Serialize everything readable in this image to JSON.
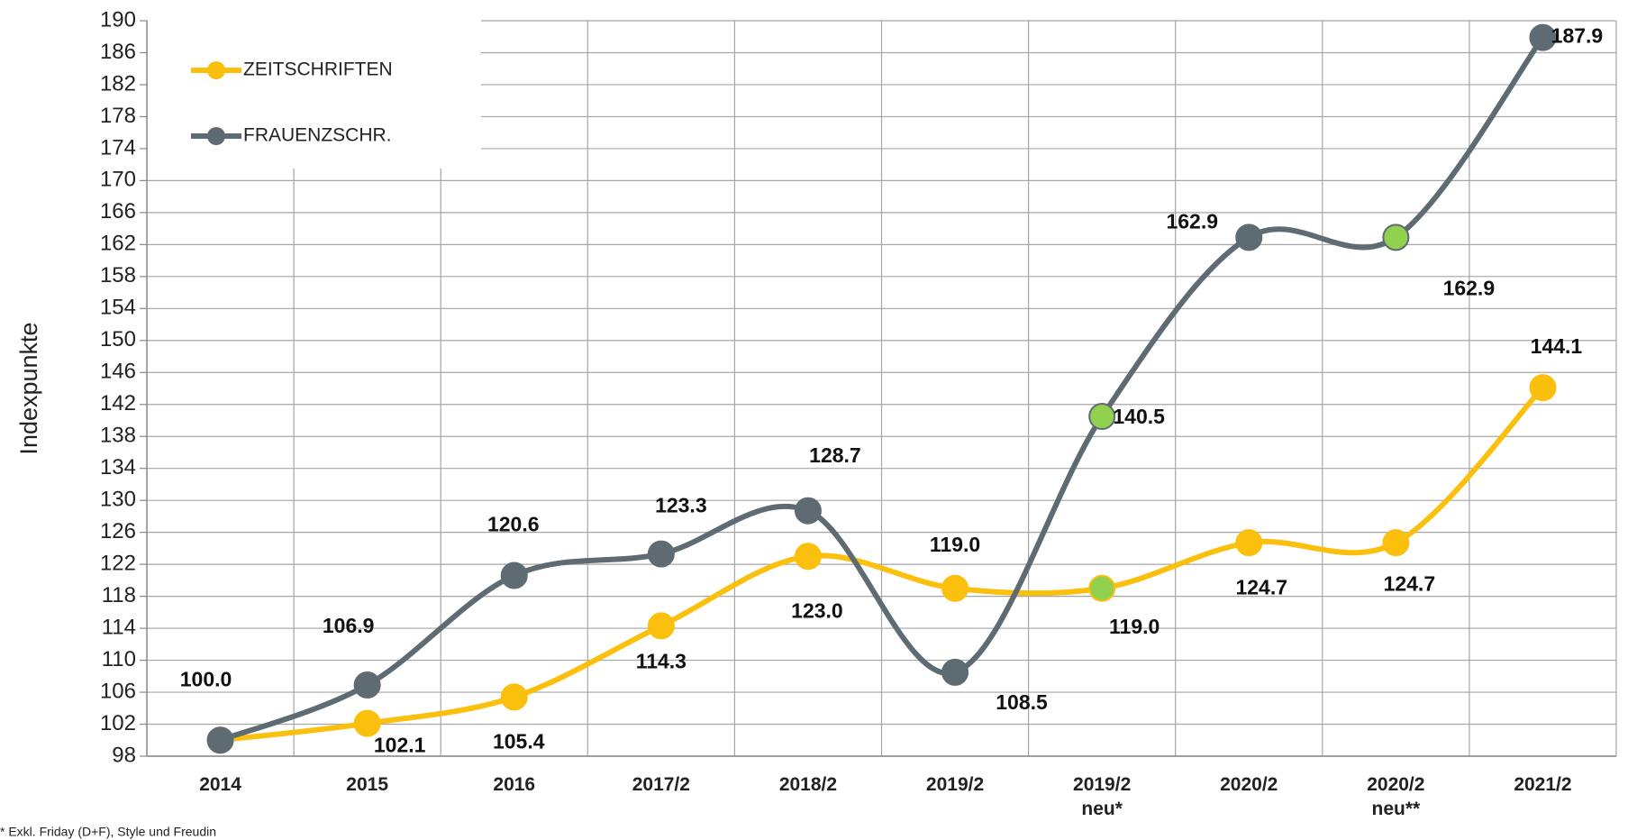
{
  "chart_data": {
    "type": "line",
    "smooth": true,
    "y_label": "Indexpunkte",
    "footnote": "* Exkl. Friday (D+F), Style und Freudin",
    "categories": [
      "2014",
      "2015",
      "2016",
      "2017/2",
      "2018/2",
      "2019/2",
      "2019/2\nneu*",
      "2020/2",
      "2020/2\nneu**",
      "2021/2"
    ],
    "series": [
      {
        "name": "ZEITSCHRIFTEN",
        "color": "#fbbf0d",
        "marker_colors": [
          "#fbbf0d",
          "#fbbf0d",
          "#fbbf0d",
          "#fbbf0d",
          "#fbbf0d",
          "#fbbf0d",
          "#92d050",
          "#fbbf0d",
          "#fbbf0d",
          "#fbbf0d"
        ],
        "values": [
          100.0,
          102.1,
          105.4,
          114.3,
          123.0,
          119.0,
          119.0,
          124.7,
          124.7,
          144.1
        ],
        "value_labels": [
          "100.0",
          "102.1",
          "105.4",
          "114.3",
          "123.0",
          "119.0",
          "119.0",
          "124.7",
          "124.7",
          "144.1"
        ]
      },
      {
        "name": "FRAUENZSCHR.",
        "color": "#5f6b73",
        "marker_colors": [
          "#5f6b73",
          "#5f6b73",
          "#5f6b73",
          "#5f6b73",
          "#5f6b73",
          "#5f6b73",
          "#92d050",
          "#5f6b73",
          "#92d050",
          "#5f6b73"
        ],
        "values": [
          100.0,
          106.9,
          120.6,
          123.3,
          128.7,
          108.5,
          140.5,
          162.9,
          162.9,
          187.9
        ],
        "value_labels": [
          "100.0",
          "106.9",
          "120.6",
          "123.3",
          "128.7",
          "108.5",
          "140.5",
          "162.9",
          "162.9",
          "187.9"
        ]
      }
    ],
    "ylim": [
      98,
      190
    ],
    "yticks": [
      98,
      102,
      106,
      110,
      114,
      118,
      122,
      126,
      130,
      134,
      138,
      142,
      146,
      150,
      154,
      158,
      162,
      166,
      170,
      174,
      178,
      182,
      186,
      190
    ],
    "grid": true,
    "legend": "top-left"
  }
}
